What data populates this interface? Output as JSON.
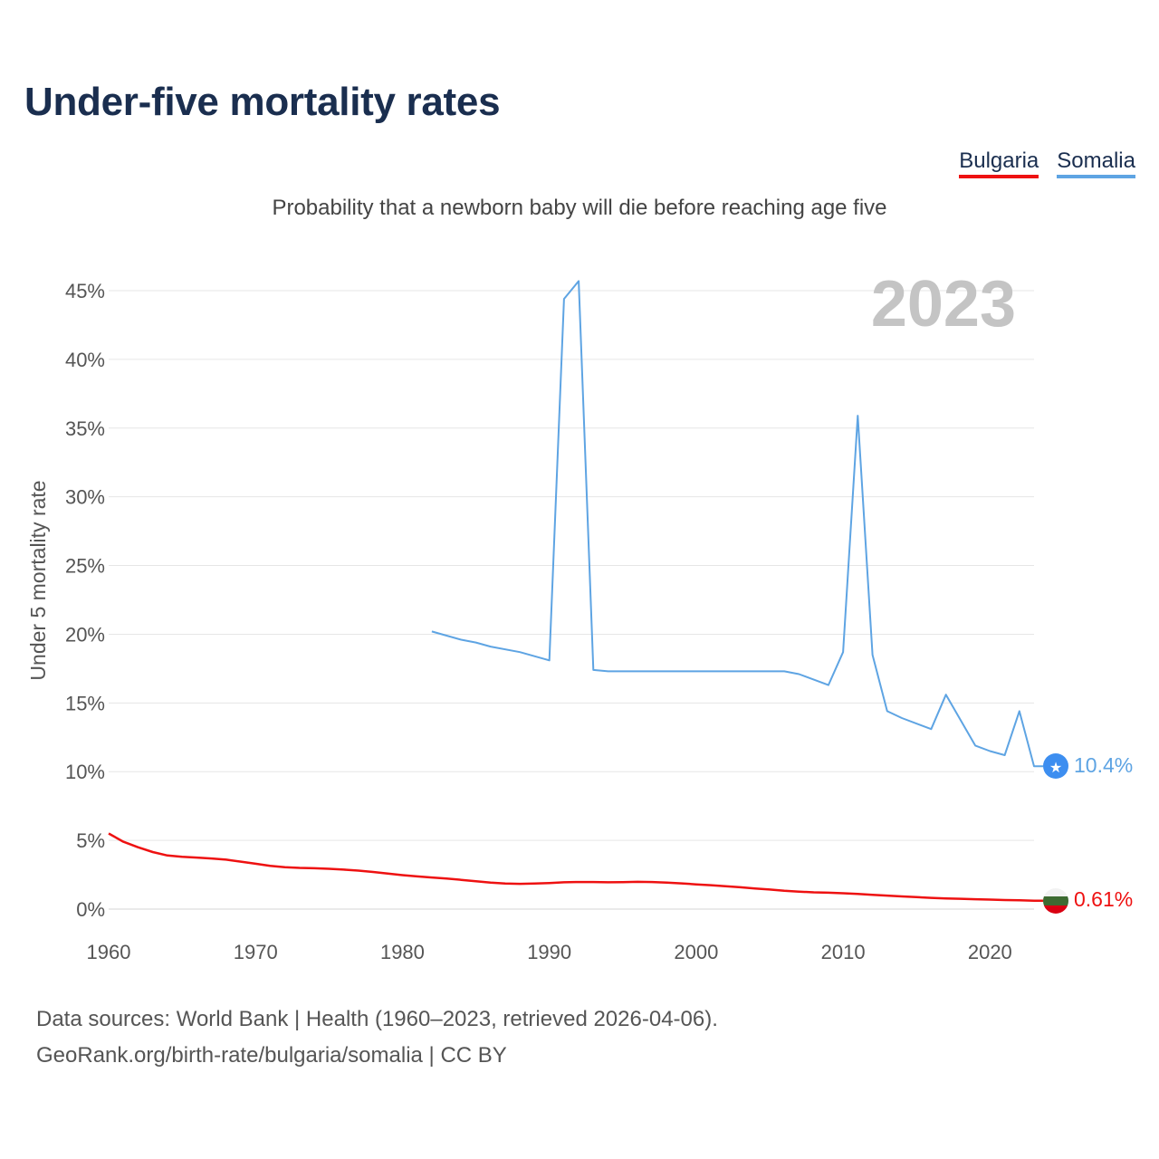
{
  "title": "Under-five mortality rates",
  "subtitle": "Probability that a newborn baby will die before reaching age five",
  "legend": [
    {
      "name": "Bulgaria",
      "color": "#ee1111"
    },
    {
      "name": "Somalia",
      "color": "#5ea4e3"
    }
  ],
  "current_year": "2023",
  "source": {
    "line1": "Data sources: World Bank | Health (1960–2023, retrieved 2026-04-06).",
    "line2": "GeoRank.org/birth-rate/bulgaria/somalia | CC BY"
  },
  "chart_data": {
    "type": "line",
    "title": "Under-five mortality rates",
    "xlabel": "",
    "ylabel": "Under 5 mortality rate",
    "xlim": [
      1960,
      2023
    ],
    "ylim": [
      0,
      47
    ],
    "x_ticks": [
      1960,
      1970,
      1980,
      1990,
      2000,
      2010,
      2020
    ],
    "x_tick_labels": [
      "1960",
      "1970",
      "1980",
      "1990",
      "2000",
      "2010",
      "2020"
    ],
    "y_ticks": [
      0,
      5,
      10,
      15,
      20,
      25,
      30,
      35,
      40,
      45
    ],
    "y_tick_labels": [
      "0%",
      "5%",
      "10%",
      "15%",
      "20%",
      "25%",
      "30%",
      "35%",
      "40%",
      "45%"
    ],
    "grid": true,
    "series": [
      {
        "name": "Bulgaria",
        "color": "#ee1111",
        "end_label": "0.61%",
        "end_icon": "bulgaria-flag-icon",
        "x": [
          1960,
          1961,
          1962,
          1963,
          1964,
          1965,
          1966,
          1967,
          1968,
          1969,
          1970,
          1971,
          1972,
          1973,
          1974,
          1975,
          1976,
          1977,
          1978,
          1979,
          1980,
          1981,
          1982,
          1983,
          1984,
          1985,
          1986,
          1987,
          1988,
          1989,
          1990,
          1991,
          1992,
          1993,
          1994,
          1995,
          1996,
          1997,
          1998,
          1999,
          2000,
          2001,
          2002,
          2003,
          2004,
          2005,
          2006,
          2007,
          2008,
          2009,
          2010,
          2011,
          2012,
          2013,
          2014,
          2015,
          2016,
          2017,
          2018,
          2019,
          2020,
          2021,
          2022,
          2023
        ],
        "values": [
          5.5,
          4.9,
          4.5,
          4.15,
          3.9,
          3.8,
          3.75,
          3.68,
          3.6,
          3.45,
          3.3,
          3.15,
          3.05,
          3.0,
          2.97,
          2.93,
          2.87,
          2.8,
          2.7,
          2.58,
          2.47,
          2.38,
          2.3,
          2.22,
          2.13,
          2.03,
          1.93,
          1.86,
          1.84,
          1.86,
          1.9,
          1.95,
          1.97,
          1.97,
          1.95,
          1.96,
          1.98,
          1.97,
          1.93,
          1.87,
          1.8,
          1.74,
          1.67,
          1.59,
          1.5,
          1.42,
          1.33,
          1.27,
          1.22,
          1.19,
          1.15,
          1.1,
          1.04,
          0.98,
          0.92,
          0.87,
          0.82,
          0.78,
          0.75,
          0.72,
          0.69,
          0.66,
          0.64,
          0.61
        ]
      },
      {
        "name": "Somalia",
        "color": "#5ea4e3",
        "end_label": "10.4%",
        "end_icon": "somalia-flag-icon",
        "x": [
          1982,
          1984,
          1985,
          1986,
          1988,
          1990,
          1991,
          1992,
          1993,
          1994,
          1995,
          2000,
          2005,
          2006,
          2007,
          2009,
          2010,
          2011,
          2012,
          2013,
          2014,
          2016,
          2017,
          2019,
          2020,
          2021,
          2022,
          2023
        ],
        "values": [
          20.2,
          19.6,
          19.4,
          19.1,
          18.7,
          18.1,
          44.4,
          45.7,
          17.4,
          17.3,
          17.3,
          17.3,
          17.3,
          17.3,
          17.1,
          16.3,
          18.7,
          35.9,
          18.5,
          14.4,
          13.9,
          13.1,
          15.6,
          11.9,
          11.5,
          11.2,
          14.4,
          10.4
        ]
      }
    ]
  }
}
